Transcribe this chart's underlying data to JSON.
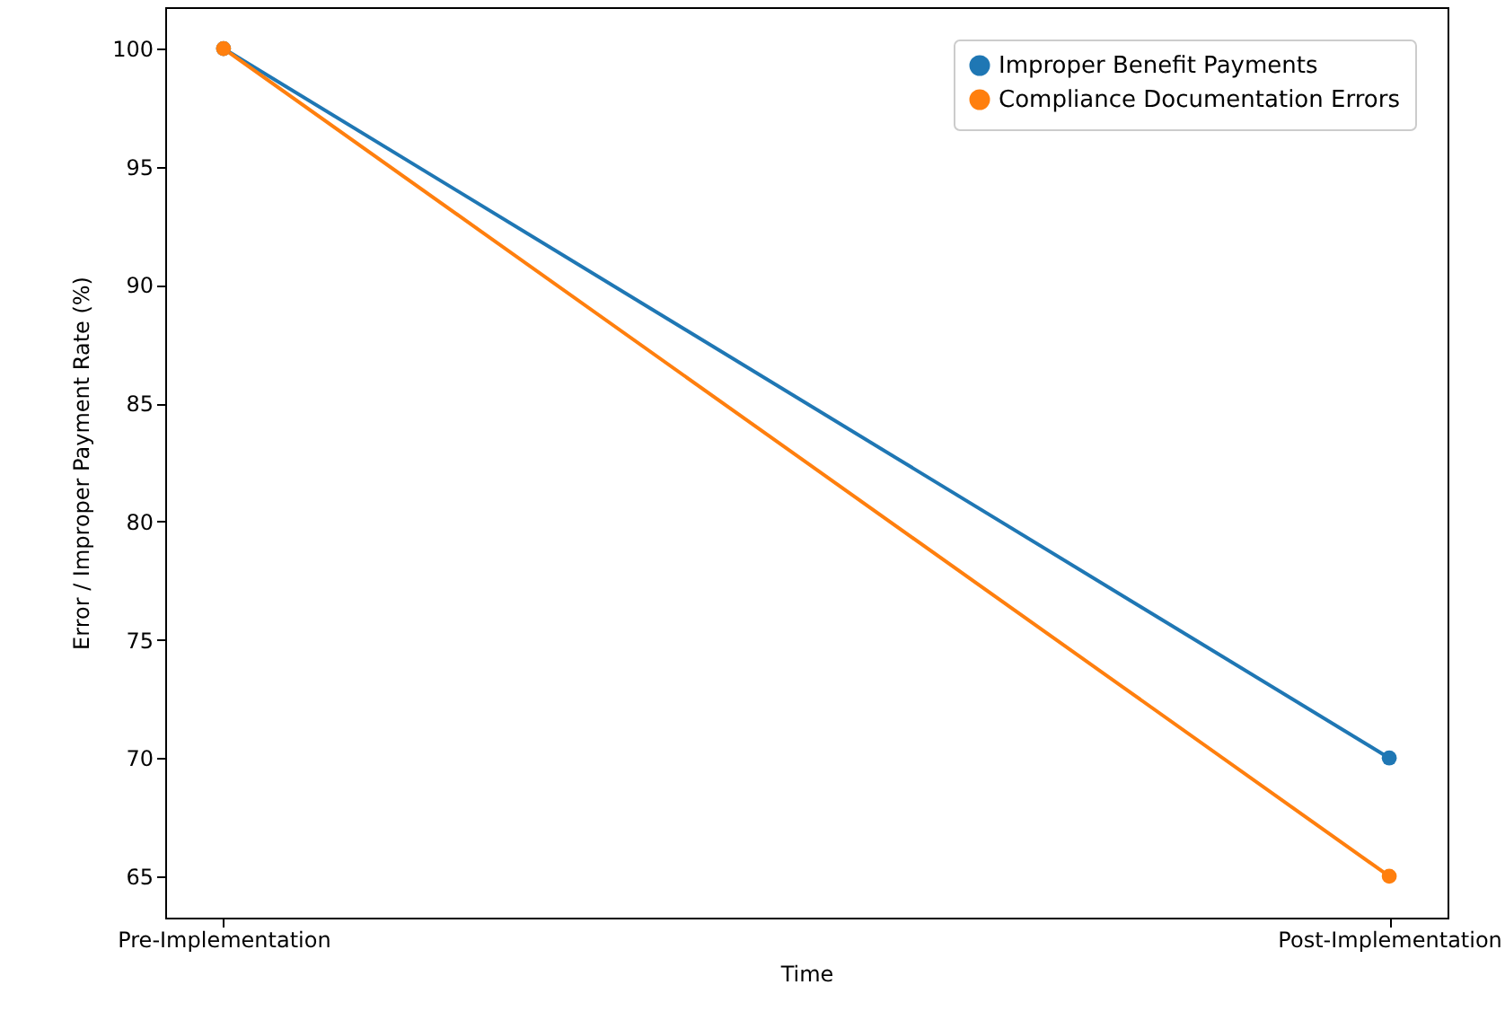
{
  "chart_data": {
    "type": "line",
    "xlabel": "Time",
    "ylabel": "Error / Improper Payment Rate (%)",
    "categories": [
      "Pre-Implementation",
      "Post-Implementation"
    ],
    "series": [
      {
        "name": "Improper Benefit Payments",
        "color": "#1f77b4",
        "values": [
          100,
          70
        ]
      },
      {
        "name": "Compliance Documentation Errors",
        "color": "#ff7f0e",
        "values": [
          100,
          65
        ]
      }
    ],
    "ylim": [
      63.25,
      101.75
    ],
    "yticks": [
      65,
      70,
      75,
      80,
      85,
      90,
      95,
      100
    ],
    "grid": false,
    "legend": "top right",
    "marker": "circle",
    "line_style": "solid"
  }
}
